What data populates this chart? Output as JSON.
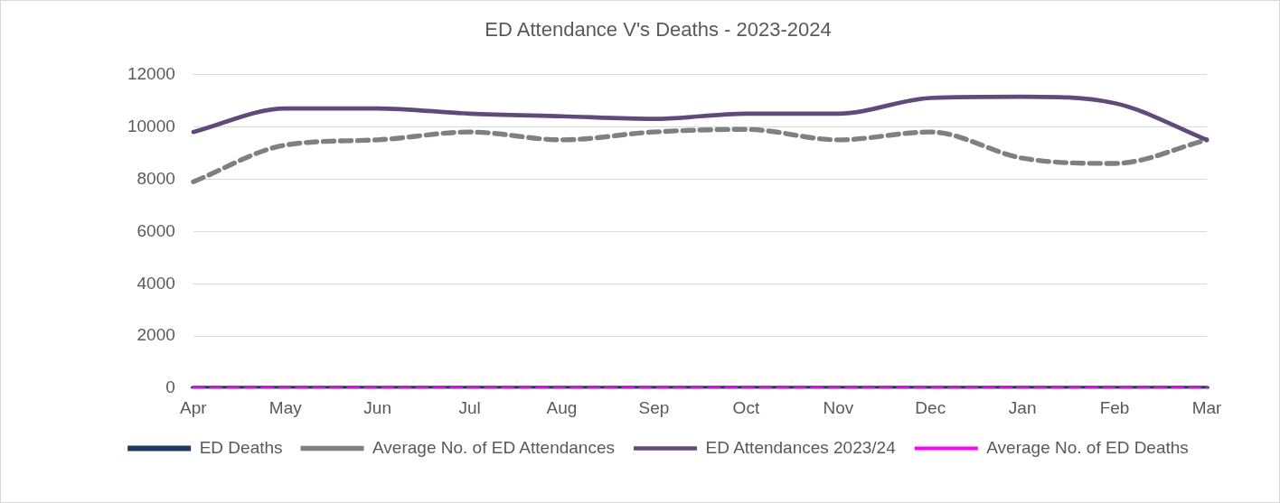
{
  "chart_data": {
    "type": "line",
    "title": "ED Attendance V's Deaths - 2023-2024",
    "categories": [
      "Apr",
      "May",
      "Jun",
      "Jul",
      "Aug",
      "Sep",
      "Oct",
      "Nov",
      "Dec",
      "Jan",
      "Feb",
      "Mar"
    ],
    "series": [
      {
        "name": "ED Deaths",
        "color": "#1f3864",
        "line_style": "solid",
        "values": [
          0,
          0,
          0,
          0,
          0,
          0,
          0,
          0,
          0,
          0,
          0,
          0
        ]
      },
      {
        "name": "Average No. of ED Attendances",
        "color": "#808080",
        "line_style": "dashed",
        "values": [
          7900,
          9300,
          9500,
          9800,
          9500,
          9800,
          9900,
          9500,
          9800,
          8800,
          8600,
          9500
        ]
      },
      {
        "name": "ED Attendances 2023/24",
        "color": "#604a7b",
        "line_style": "solid",
        "values": [
          9800,
          10700,
          10700,
          10500,
          10400,
          10300,
          10500,
          10500,
          11100,
          11150,
          10900,
          9500
        ]
      },
      {
        "name": "Average No. of ED Deaths",
        "color": "#ff00ff",
        "line_style": "dashed",
        "values": [
          0,
          0,
          0,
          0,
          0,
          0,
          0,
          0,
          0,
          0,
          0,
          0
        ]
      }
    ],
    "ylim": [
      0,
      12000
    ],
    "yticks": [
      0,
      2000,
      4000,
      6000,
      8000,
      10000,
      12000
    ],
    "grid": "y",
    "legend": "bottom",
    "marker": "none"
  }
}
